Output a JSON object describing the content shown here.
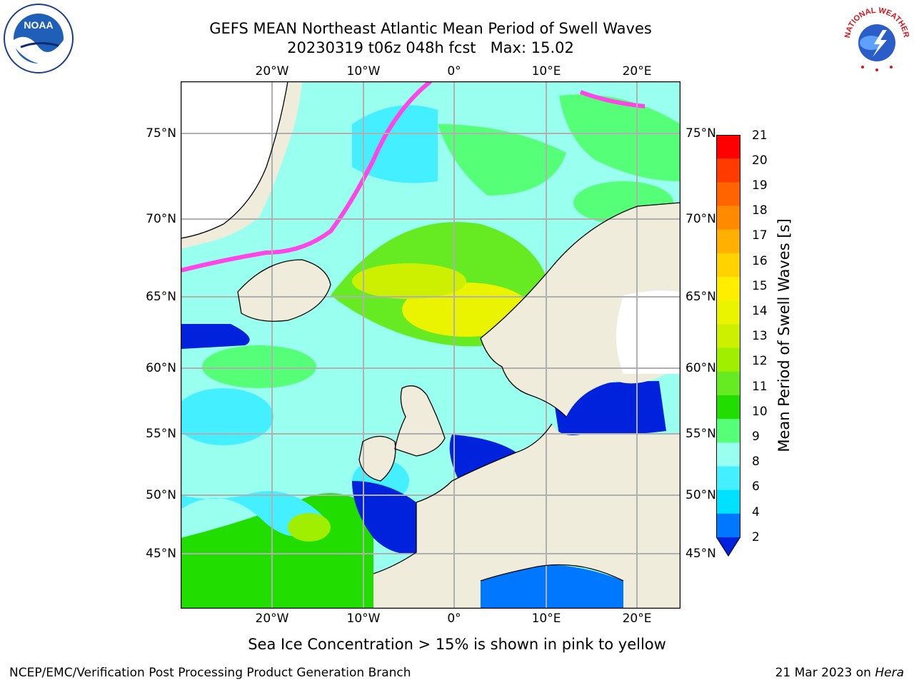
{
  "title": {
    "line1": "GEFS MEAN Northeast Atlantic Mean Period of Swell Waves",
    "line2": "20230319 t06z 048h fcst   Max: 15.02"
  },
  "logos": {
    "left_name": "noaa-logo",
    "left_text": "NOAA",
    "right_name": "national-weather-service-logo",
    "right_text": "NATIONAL WEATHER SERVICE"
  },
  "map": {
    "lon_ticks": [
      "20°W",
      "10°W",
      "0°",
      "10°E",
      "20°E"
    ],
    "lat_ticks": [
      "75°N",
      "70°N",
      "65°N",
      "60°N",
      "55°N",
      "50°N",
      "45°N"
    ],
    "colors": {
      "land": "#efecdc",
      "ice_white": "#ffffff",
      "ice_pink": "#ff44e8",
      "grid": "#b0b0b0",
      "coast": "#000000"
    }
  },
  "colorbar": {
    "label": "Mean Period of Swell Waves [s]",
    "ticks": [
      "21",
      "20",
      "19",
      "18",
      "17",
      "16",
      "15",
      "14",
      "13",
      "12",
      "11",
      "10",
      "9",
      "8",
      "6",
      "4",
      "2"
    ],
    "colors": [
      "#ff0000",
      "#ff3b00",
      "#ff6400",
      "#ff8a00",
      "#ffb000",
      "#ffd200",
      "#ffee00",
      "#eaf400",
      "#ccf000",
      "#a0ee00",
      "#66ea22",
      "#22dd00",
      "#55ff77",
      "#99ffee",
      "#44f0ff",
      "#00e0ff",
      "#0077ff",
      "#0022dd"
    ]
  },
  "ice_note": "Sea Ice Concentration > 15% is shown in pink to yellow",
  "footer": {
    "left": "NCEP/EMC/Verification Post Processing Product Generation Branch",
    "right_date": "21 Mar 2023 on",
    "right_host": "Hera"
  }
}
